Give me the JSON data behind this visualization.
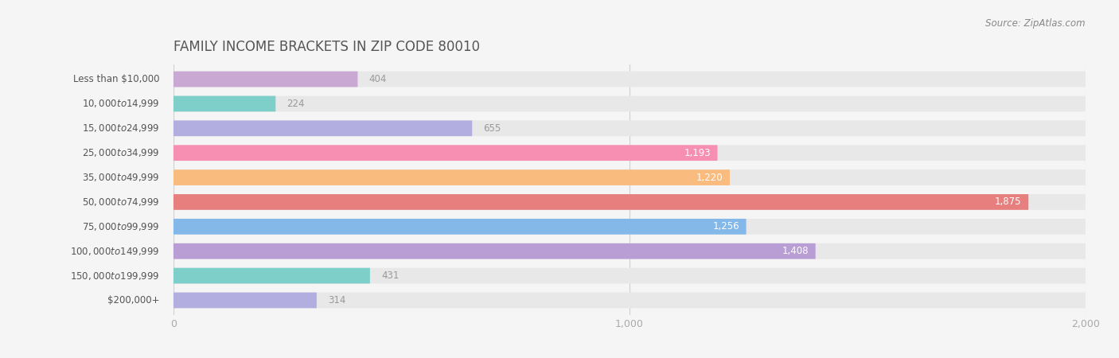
{
  "title": "FAMILY INCOME BRACKETS IN ZIP CODE 80010",
  "source": "Source: ZipAtlas.com",
  "categories": [
    "Less than $10,000",
    "$10,000 to $14,999",
    "$15,000 to $24,999",
    "$25,000 to $34,999",
    "$35,000 to $49,999",
    "$50,000 to $74,999",
    "$75,000 to $99,999",
    "$100,000 to $149,999",
    "$150,000 to $199,999",
    "$200,000+"
  ],
  "values": [
    404,
    224,
    655,
    1193,
    1220,
    1875,
    1256,
    1408,
    431,
    314
  ],
  "bar_colors": [
    "#c9a8d4",
    "#7ececa",
    "#b3aee0",
    "#f78fb3",
    "#f9bc7e",
    "#e87f7f",
    "#84b8e8",
    "#b89ed4",
    "#7ececa",
    "#b3aee0"
  ],
  "xlim": [
    0,
    2000
  ],
  "background_color": "#f5f5f5",
  "bar_background_color": "#e8e8e8",
  "title_color": "#555555",
  "label_color": "#555555",
  "value_color_inside": "#ffffff",
  "value_color_outside": "#999999",
  "tick_color": "#aaaaaa",
  "source_color": "#888888",
  "bar_height": 0.68,
  "inside_threshold": 700
}
